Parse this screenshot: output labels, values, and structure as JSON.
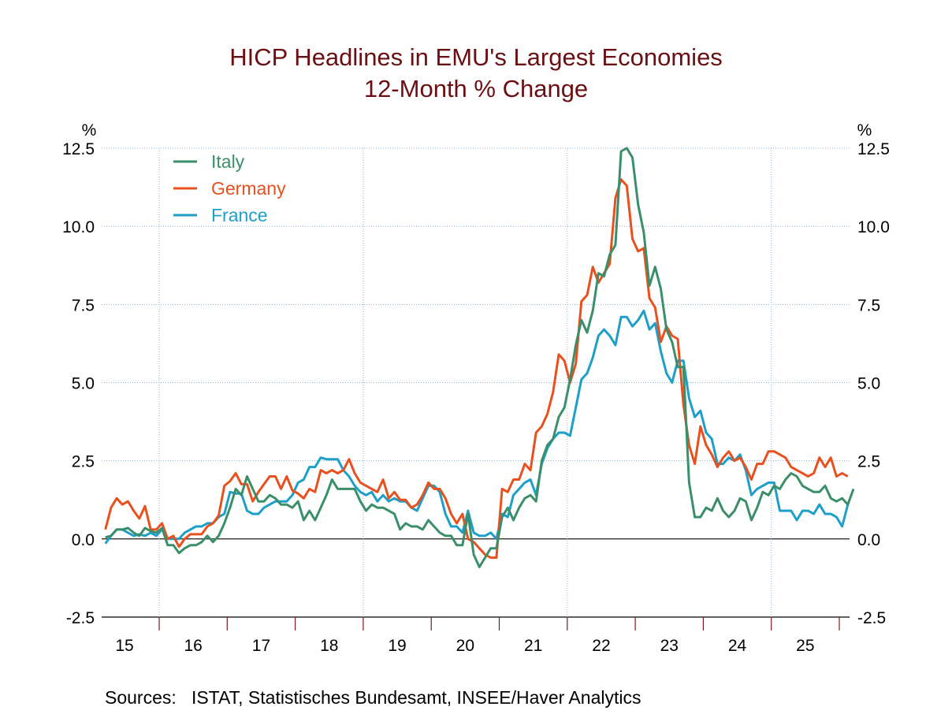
{
  "chart_data": {
    "type": "line",
    "title": "HICP Headlines in EMU's Largest Economies",
    "subtitle": "12-Month % Change",
    "ylabel_left": "%",
    "ylabel_right": "%",
    "ylim": [
      -2.5,
      12.5
    ],
    "yticks": [
      "12.5",
      "10.0",
      "7.5",
      "5.0",
      "2.5",
      "0.0",
      "-2.5"
    ],
    "ytick_values": [
      12.5,
      10,
      7.5,
      5,
      2.5,
      0,
      -2.5
    ],
    "x_start": "2015-03",
    "x_end": "2026-02",
    "frequency": "monthly",
    "xtick_labels": [
      "15",
      "16",
      "17",
      "18",
      "19",
      "20",
      "21",
      "22",
      "23",
      "24",
      "25"
    ],
    "grid": "dotted, horizontal at each y tick, vertical at 2016, 2019, 2022, 2025",
    "legend_position": "top-left",
    "series": [
      {
        "name": "Italy",
        "color": "#3a8f6a",
        "values": [
          0.05,
          0.1,
          0.3,
          0.3,
          0.35,
          0.2,
          0.1,
          0.35,
          0.25,
          0.2,
          0.35,
          -0.2,
          -0.2,
          -0.45,
          -0.3,
          -0.2,
          -0.2,
          -0.1,
          0.1,
          -0.1,
          0.1,
          0.5,
          1.0,
          1.6,
          1.4,
          2.0,
          1.6,
          1.2,
          1.2,
          1.4,
          1.3,
          1.1,
          1.1,
          1.0,
          1.2,
          0.6,
          0.9,
          0.6,
          1.0,
          1.4,
          1.9,
          1.6,
          1.6,
          1.6,
          1.6,
          1.2,
          0.9,
          1.1,
          1.0,
          1.0,
          0.9,
          0.8,
          0.3,
          0.5,
          0.4,
          0.4,
          0.3,
          0.6,
          0.4,
          0.2,
          0.1,
          0.1,
          -0.2,
          -0.2,
          0.8,
          -0.5,
          -0.9,
          -0.6,
          -0.3,
          -0.3,
          0.7,
          1.0,
          0.6,
          1.0,
          1.3,
          1.4,
          1.2,
          2.5,
          3.0,
          3.2,
          3.9,
          4.2,
          5.1,
          6.2,
          7.0,
          6.6,
          7.3,
          8.5,
          8.4,
          9.1,
          9.4,
          12.4,
          12.5,
          12.2,
          10.7,
          9.8,
          8.1,
          8.7,
          8.0,
          6.7,
          6.3,
          5.5,
          5.5,
          1.8,
          0.7,
          0.7,
          1.0,
          0.9,
          1.3,
          0.9,
          0.7,
          0.9,
          1.3,
          1.2,
          0.6,
          1.0,
          1.5,
          1.4,
          1.7,
          1.6,
          1.9,
          2.1,
          2.0,
          1.7,
          1.6,
          1.5,
          1.5,
          1.7,
          1.3,
          1.2,
          1.3,
          1.1,
          1.6
        ]
      },
      {
        "name": "Germany",
        "color": "#e8501e",
        "values": [
          0.3,
          1.0,
          1.3,
          1.1,
          1.2,
          0.9,
          0.65,
          1.05,
          0.3,
          0.3,
          0.5,
          0.0,
          0.1,
          -0.25,
          0.0,
          0.15,
          0.15,
          0.15,
          0.4,
          0.5,
          0.75,
          1.7,
          1.85,
          2.1,
          1.75,
          1.75,
          1.2,
          1.5,
          1.75,
          2.0,
          2.0,
          1.6,
          2.0,
          1.55,
          1.45,
          1.3,
          1.6,
          1.5,
          2.2,
          2.1,
          2.2,
          2.1,
          2.2,
          2.55,
          2.1,
          1.8,
          1.7,
          1.6,
          1.5,
          1.9,
          1.3,
          1.5,
          1.25,
          1.25,
          1.0,
          1.1,
          1.4,
          1.8,
          1.6,
          1.6,
          1.3,
          0.8,
          0.5,
          0.8,
          0.0,
          -0.1,
          -0.3,
          -0.5,
          -0.6,
          -0.6,
          1.6,
          1.5,
          1.9,
          1.9,
          2.4,
          2.2,
          3.4,
          3.6,
          4.0,
          4.7,
          5.9,
          5.7,
          5.0,
          5.6,
          7.6,
          7.8,
          8.7,
          8.2,
          8.5,
          8.8,
          10.9,
          11.5,
          11.3,
          9.6,
          9.2,
          9.3,
          7.7,
          7.4,
          6.3,
          6.8,
          6.5,
          6.4,
          4.3,
          3.0,
          2.4,
          3.6,
          3.0,
          2.7,
          2.3,
          2.6,
          2.8,
          2.5,
          2.6,
          2.3,
          1.9,
          2.4,
          2.4,
          2.8,
          2.8,
          2.7,
          2.6,
          2.3,
          2.2,
          2.1,
          2.0,
          2.1,
          2.6,
          2.3,
          2.6,
          2.0,
          2.1,
          2.0
        ]
      },
      {
        "name": "France",
        "color": "#1d9fc9",
        "values": [
          -0.15,
          0.1,
          0.3,
          0.3,
          0.2,
          0.1,
          0.15,
          0.1,
          0.2,
          0.1,
          0.3,
          0.0,
          0.0,
          0.0,
          0.2,
          0.3,
          0.4,
          0.4,
          0.5,
          0.5,
          0.7,
          0.8,
          1.5,
          1.45,
          1.45,
          0.9,
          0.8,
          0.8,
          1.0,
          1.1,
          1.2,
          1.2,
          1.2,
          1.4,
          1.8,
          1.9,
          2.3,
          2.3,
          2.6,
          2.55,
          2.55,
          2.55,
          2.2,
          2.0,
          1.7,
          1.5,
          1.4,
          1.5,
          1.2,
          1.4,
          1.2,
          1.3,
          1.2,
          1.2,
          1.0,
          0.9,
          1.3,
          1.7,
          1.7,
          1.5,
          0.8,
          0.4,
          0.4,
          0.2,
          0.9,
          0.2,
          0.1,
          0.1,
          0.2,
          0.0,
          0.8,
          0.7,
          1.4,
          1.6,
          1.8,
          1.9,
          1.4,
          2.4,
          2.9,
          3.2,
          3.4,
          3.4,
          3.3,
          4.2,
          5.1,
          5.3,
          5.8,
          6.5,
          6.7,
          6.5,
          6.2,
          7.1,
          7.1,
          6.8,
          7.0,
          7.3,
          6.7,
          6.9,
          6.0,
          5.3,
          5.0,
          5.7,
          5.7,
          4.5,
          3.9,
          4.1,
          3.4,
          3.2,
          2.4,
          2.4,
          2.6,
          2.5,
          2.7,
          2.2,
          1.4,
          1.6,
          1.7,
          1.8,
          1.8,
          0.9,
          0.9,
          0.9,
          0.6,
          0.9,
          0.9,
          0.8,
          1.1,
          0.8,
          0.8,
          0.7,
          0.4,
          1.1
        ]
      }
    ]
  },
  "footer": {
    "sources_label": "Sources:",
    "sources_text": "ISTAT, Statistisches Bundesamt, INSEE/Haver Analytics"
  }
}
